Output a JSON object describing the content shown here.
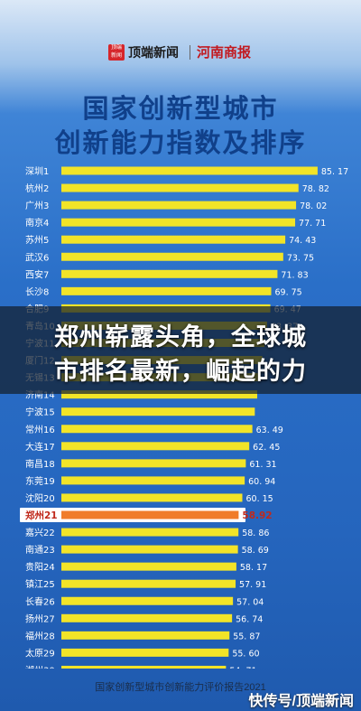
{
  "brand": {
    "left_name": "顶端新闻",
    "left_logo": "顶端 新闻",
    "right_name": "河南商报"
  },
  "headline": {
    "line1": "国家创新型城市",
    "line2": "创新能力指数及排序"
  },
  "overlay": {
    "line1": "郑州崭露头角，全球城",
    "line2": "市排名最新，崛起的力"
  },
  "footer": {
    "source": "国家创新型城市创新能力评价报告2021",
    "watermark": "快传号/顶端新闻"
  },
  "colors": {
    "bar": "#f2e428",
    "highlight_bar": "#f07c2a",
    "label": "#ffffff",
    "highlight_box": "#ffffff"
  },
  "chart_data": {
    "type": "bar",
    "orientation": "horizontal",
    "title": "国家创新型城市创新能力指数及排序",
    "categories": [
      "深圳1",
      "杭州2",
      "广州3",
      "南京4",
      "苏州5",
      "武汉6",
      "西安7",
      "长沙8",
      "合肥9",
      "青岛10",
      "宁波11",
      "厦门12",
      "无锡13",
      "济南14",
      "宁波15",
      "常州16",
      "大连17",
      "南昌18",
      "东莞19",
      "沈阳20",
      "郑州21",
      "嘉兴22",
      "南通23",
      "贵阳24",
      "镇江25",
      "长春26",
      "扬州27",
      "福州28",
      "太原29",
      "湖州30"
    ],
    "values": [
      85.17,
      78.82,
      78.02,
      77.71,
      74.43,
      73.75,
      71.83,
      69.75,
      69.47,
      68.37,
      67.5,
      66.8,
      66.2,
      65.1,
      64.3,
      63.49,
      62.45,
      61.31,
      60.94,
      60.15,
      58.92,
      58.86,
      58.69,
      58.17,
      57.91,
      57.04,
      56.74,
      55.87,
      55.6,
      54.71
    ],
    "value_labels": [
      "85. 17",
      "78. 82",
      "78. 02",
      "77. 71",
      "74. 43",
      "73. 75",
      "71. 83",
      "69. 75",
      "69. 47",
      "68. 37",
      "",
      "",
      "",
      "",
      "",
      "63. 49",
      "62. 45",
      "61. 31",
      "60. 94",
      "60. 15",
      "58.92",
      "58. 86",
      "58. 69",
      "58. 17",
      "57. 91",
      "57. 04",
      "56. 74",
      "55. 87",
      "55. 60",
      "54. 71"
    ],
    "highlight": "郑州21",
    "xlim": [
      0,
      90
    ],
    "grid": false
  }
}
